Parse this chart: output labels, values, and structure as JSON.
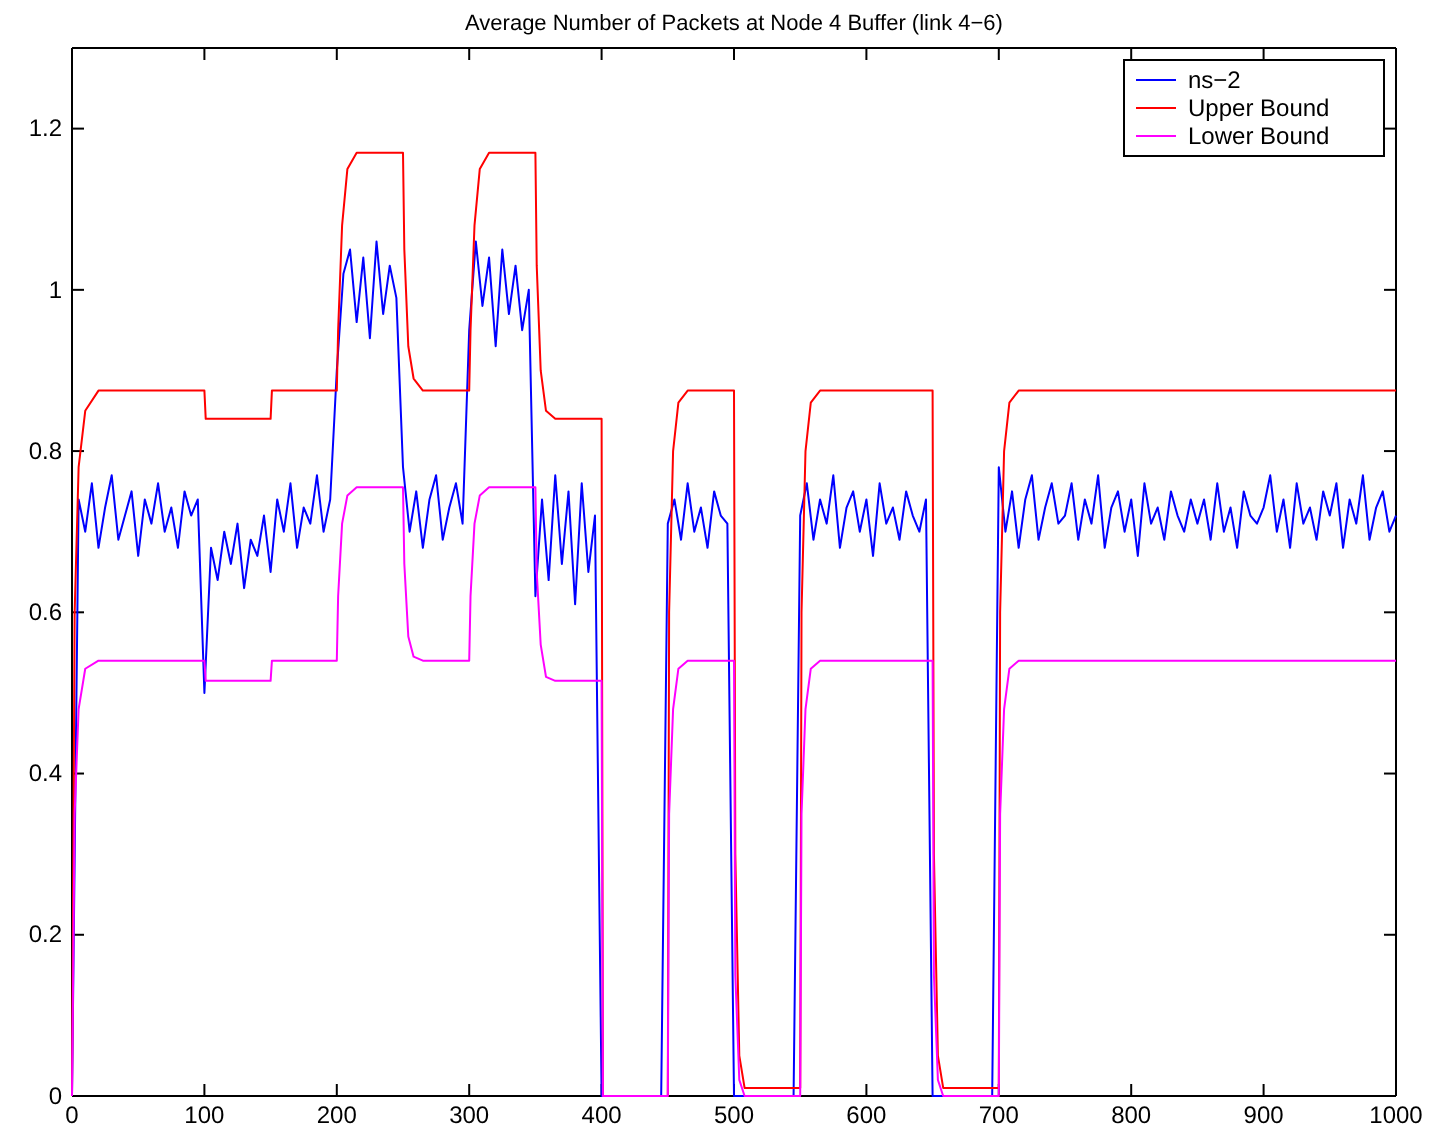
{
  "chart_data": {
    "type": "line",
    "title": "Average Number of Packets at Node 4 Buffer (link 4−6)",
    "xlim": [
      0,
      1000
    ],
    "ylim": [
      0,
      1.3
    ],
    "xticks": [
      0,
      100,
      200,
      300,
      400,
      500,
      600,
      700,
      800,
      900,
      1000
    ],
    "yticks": [
      0,
      0.2,
      0.4,
      0.6,
      0.8,
      1,
      1.2
    ],
    "grid": false,
    "legend": "top right",
    "marker": "none",
    "line_style": "solid",
    "series": [
      {
        "name": "ns−2",
        "color": "#0000ff",
        "x": [
          0,
          5,
          10,
          15,
          20,
          25,
          30,
          35,
          40,
          45,
          50,
          55,
          60,
          65,
          70,
          75,
          80,
          85,
          90,
          95,
          100,
          105,
          110,
          115,
          120,
          125,
          130,
          135,
          140,
          145,
          150,
          155,
          160,
          165,
          170,
          175,
          180,
          185,
          190,
          195,
          200,
          205,
          210,
          215,
          220,
          225,
          230,
          235,
          240,
          245,
          250,
          255,
          260,
          265,
          270,
          275,
          280,
          285,
          290,
          295,
          300,
          305,
          310,
          315,
          320,
          325,
          330,
          335,
          340,
          345,
          350,
          355,
          360,
          365,
          370,
          375,
          380,
          385,
          390,
          395,
          400,
          405,
          410,
          415,
          420,
          425,
          430,
          435,
          440,
          445,
          450,
          455,
          460,
          465,
          470,
          475,
          480,
          485,
          490,
          495,
          500,
          505,
          510,
          515,
          520,
          525,
          530,
          535,
          540,
          545,
          550,
          555,
          560,
          565,
          570,
          575,
          580,
          585,
          590,
          595,
          600,
          605,
          610,
          615,
          620,
          625,
          630,
          635,
          640,
          645,
          650,
          655,
          660,
          665,
          670,
          675,
          680,
          685,
          690,
          695,
          700,
          705,
          710,
          715,
          720,
          725,
          730,
          735,
          740,
          745,
          750,
          755,
          760,
          765,
          770,
          775,
          780,
          785,
          790,
          795,
          800,
          805,
          810,
          815,
          820,
          825,
          830,
          835,
          840,
          845,
          850,
          855,
          860,
          865,
          870,
          875,
          880,
          885,
          890,
          895,
          900,
          905,
          910,
          915,
          920,
          925,
          930,
          935,
          940,
          945,
          950,
          955,
          960,
          965,
          970,
          975,
          980,
          985,
          990,
          995,
          1000
        ],
        "values": [
          0,
          0.74,
          0.7,
          0.76,
          0.68,
          0.73,
          0.77,
          0.69,
          0.72,
          0.75,
          0.67,
          0.74,
          0.71,
          0.76,
          0.7,
          0.73,
          0.68,
          0.75,
          0.72,
          0.74,
          0.5,
          0.68,
          0.64,
          0.7,
          0.66,
          0.71,
          0.63,
          0.69,
          0.67,
          0.72,
          0.65,
          0.74,
          0.7,
          0.76,
          0.68,
          0.73,
          0.71,
          0.77,
          0.7,
          0.74,
          0.9,
          1.02,
          1.05,
          0.96,
          1.04,
          0.94,
          1.06,
          0.97,
          1.03,
          0.99,
          0.78,
          0.7,
          0.75,
          0.68,
          0.74,
          0.77,
          0.69,
          0.73,
          0.76,
          0.71,
          0.95,
          1.06,
          0.98,
          1.04,
          0.93,
          1.05,
          0.97,
          1.03,
          0.95,
          1.0,
          0.62,
          0.74,
          0.64,
          0.77,
          0.66,
          0.75,
          0.61,
          0.76,
          0.65,
          0.72,
          0,
          0,
          0,
          0,
          0,
          0,
          0,
          0,
          0,
          0,
          0.71,
          0.74,
          0.69,
          0.76,
          0.7,
          0.73,
          0.68,
          0.75,
          0.72,
          0.71,
          0,
          0,
          0,
          0,
          0,
          0,
          0,
          0,
          0,
          0,
          0.72,
          0.76,
          0.69,
          0.74,
          0.71,
          0.77,
          0.68,
          0.73,
          0.75,
          0.7,
          0.74,
          0.67,
          0.76,
          0.71,
          0.73,
          0.69,
          0.75,
          0.72,
          0.7,
          0.74,
          0,
          0,
          0,
          0,
          0,
          0,
          0,
          0,
          0,
          0,
          0.78,
          0.7,
          0.75,
          0.68,
          0.74,
          0.77,
          0.69,
          0.73,
          0.76,
          0.71,
          0.72,
          0.76,
          0.69,
          0.74,
          0.71,
          0.77,
          0.68,
          0.73,
          0.75,
          0.7,
          0.74,
          0.67,
          0.76,
          0.71,
          0.73,
          0.69,
          0.75,
          0.72,
          0.7,
          0.74,
          0.71,
          0.74,
          0.69,
          0.76,
          0.7,
          0.73,
          0.68,
          0.75,
          0.72,
          0.71,
          0.73,
          0.77,
          0.7,
          0.74,
          0.68,
          0.76,
          0.71,
          0.73,
          0.69,
          0.75,
          0.72,
          0.76,
          0.68,
          0.74,
          0.71,
          0.77,
          0.69,
          0.73,
          0.75,
          0.7,
          0.72
        ]
      },
      {
        "name": "Upper Bound",
        "color": "#ff0000",
        "x": [
          0,
          2,
          5,
          10,
          20,
          100,
          101,
          150,
          151,
          200,
          201,
          204,
          208,
          215,
          250,
          251,
          254,
          258,
          265,
          300,
          301,
          304,
          308,
          315,
          350,
          351,
          354,
          358,
          365,
          400,
          401,
          450,
          451,
          454,
          458,
          465,
          500,
          501,
          504,
          508,
          550,
          551,
          554,
          558,
          565,
          650,
          651,
          654,
          658,
          700,
          701,
          704,
          708,
          715,
          1000
        ],
        "values": [
          0,
          0.6,
          0.78,
          0.85,
          0.875,
          0.875,
          0.84,
          0.84,
          0.875,
          0.875,
          0.95,
          1.08,
          1.15,
          1.17,
          1.17,
          1.05,
          0.93,
          0.89,
          0.875,
          0.875,
          0.95,
          1.08,
          1.15,
          1.17,
          1.17,
          1.03,
          0.9,
          0.85,
          0.84,
          0.84,
          0,
          0,
          0.6,
          0.8,
          0.86,
          0.875,
          0.875,
          0.3,
          0.05,
          0.01,
          0.01,
          0.6,
          0.8,
          0.86,
          0.875,
          0.875,
          0.3,
          0.05,
          0.01,
          0.01,
          0.6,
          0.8,
          0.86,
          0.875,
          0.875
        ]
      },
      {
        "name": "Lower Bound",
        "color": "#ff00ff",
        "x": [
          0,
          2,
          5,
          10,
          20,
          100,
          101,
          150,
          151,
          200,
          201,
          204,
          208,
          215,
          250,
          251,
          254,
          258,
          265,
          300,
          301,
          304,
          308,
          315,
          350,
          351,
          354,
          358,
          365,
          400,
          401,
          450,
          451,
          454,
          458,
          465,
          500,
          501,
          504,
          508,
          550,
          551,
          554,
          558,
          565,
          650,
          651,
          654,
          658,
          700,
          701,
          704,
          708,
          715,
          1000
        ],
        "values": [
          0,
          0.35,
          0.48,
          0.53,
          0.54,
          0.54,
          0.515,
          0.515,
          0.54,
          0.54,
          0.62,
          0.71,
          0.745,
          0.755,
          0.755,
          0.66,
          0.57,
          0.545,
          0.54,
          0.54,
          0.62,
          0.71,
          0.745,
          0.755,
          0.755,
          0.65,
          0.56,
          0.52,
          0.515,
          0.515,
          0,
          0,
          0.35,
          0.48,
          0.53,
          0.54,
          0.54,
          0.15,
          0.02,
          0,
          0,
          0.35,
          0.48,
          0.53,
          0.54,
          0.54,
          0.15,
          0.02,
          0,
          0,
          0.35,
          0.48,
          0.53,
          0.54,
          0.54
        ]
      }
    ]
  }
}
